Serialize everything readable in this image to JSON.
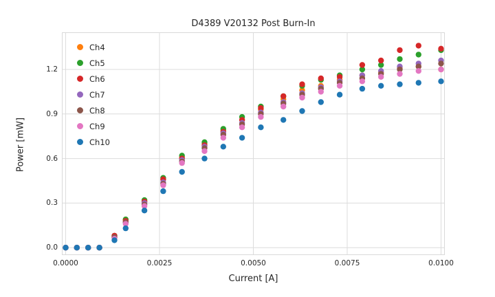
{
  "chart_data": {
    "type": "scatter",
    "title": "D4389 V20132 Post Burn-In",
    "xlabel": "Current [A]",
    "ylabel": "Power [mW]",
    "xlim": [
      -0.0001,
      0.0101
    ],
    "ylim": [
      -0.05,
      1.45
    ],
    "xticks": [
      0.0,
      0.0025,
      0.005,
      0.0075,
      0.01
    ],
    "xtick_labels": [
      "0.0000",
      "0.0025",
      "0.0050",
      "0.0075",
      "0.0100"
    ],
    "yticks": [
      0.0,
      0.3,
      0.6,
      0.9,
      1.2
    ],
    "ytick_labels": [
      "0.0",
      "0.3",
      "0.6",
      "0.9",
      "1.2"
    ],
    "grid": true,
    "legend_position": "upper-left",
    "x": [
      0.0,
      0.0003,
      0.0006,
      0.0009,
      0.0013,
      0.0016,
      0.0021,
      0.0026,
      0.0031,
      0.0037,
      0.0042,
      0.0047,
      0.0052,
      0.0058,
      0.0063,
      0.0068,
      0.0073,
      0.0079,
      0.0084,
      0.0089,
      0.0094,
      0.01
    ],
    "series": [
      {
        "name": "Ch4",
        "color": "#ff7f0e",
        "values": [
          0.0,
          0.0,
          0.0,
          0.0,
          0.08,
          0.19,
          0.31,
          0.46,
          0.61,
          0.7,
          0.79,
          0.86,
          0.93,
          1.0,
          1.06,
          1.09,
          1.13,
          1.16,
          1.18,
          1.21,
          1.22,
          1.2
        ]
      },
      {
        "name": "Ch5",
        "color": "#2ca02c",
        "values": [
          0.0,
          0.0,
          0.0,
          0.0,
          0.08,
          0.19,
          0.32,
          0.47,
          0.62,
          0.71,
          0.8,
          0.88,
          0.95,
          1.02,
          1.09,
          1.13,
          1.16,
          1.2,
          1.23,
          1.27,
          1.3,
          1.33
        ]
      },
      {
        "name": "Ch6",
        "color": "#d62728",
        "values": [
          0.0,
          0.0,
          0.0,
          0.0,
          0.08,
          0.18,
          0.31,
          0.46,
          0.6,
          0.69,
          0.78,
          0.86,
          0.94,
          1.02,
          1.1,
          1.14,
          1.15,
          1.23,
          1.26,
          1.33,
          1.36,
          1.34
        ]
      },
      {
        "name": "Ch7",
        "color": "#9467bd",
        "values": [
          0.0,
          0.0,
          0.0,
          0.0,
          0.07,
          0.17,
          0.3,
          0.44,
          0.59,
          0.68,
          0.77,
          0.84,
          0.91,
          0.98,
          1.04,
          1.08,
          1.12,
          1.16,
          1.19,
          1.22,
          1.24,
          1.26
        ]
      },
      {
        "name": "Ch8",
        "color": "#8c564b",
        "values": [
          0.0,
          0.0,
          0.0,
          0.0,
          0.07,
          0.17,
          0.29,
          0.43,
          0.58,
          0.67,
          0.76,
          0.83,
          0.9,
          0.97,
          1.03,
          1.07,
          1.11,
          1.14,
          1.17,
          1.2,
          1.22,
          1.24
        ]
      },
      {
        "name": "Ch9",
        "color": "#e377c2",
        "values": [
          0.0,
          0.0,
          0.0,
          0.0,
          0.06,
          0.16,
          0.28,
          0.42,
          0.57,
          0.65,
          0.74,
          0.81,
          0.88,
          0.95,
          1.01,
          1.05,
          1.09,
          1.12,
          1.15,
          1.17,
          1.19,
          1.2
        ]
      },
      {
        "name": "Ch10",
        "color": "#1f77b4",
        "values": [
          0.0,
          0.0,
          0.0,
          0.0,
          0.05,
          0.13,
          0.25,
          0.38,
          0.51,
          0.6,
          0.68,
          0.74,
          0.81,
          0.86,
          0.92,
          0.98,
          1.03,
          1.07,
          1.09,
          1.1,
          1.11,
          1.12
        ]
      }
    ]
  }
}
